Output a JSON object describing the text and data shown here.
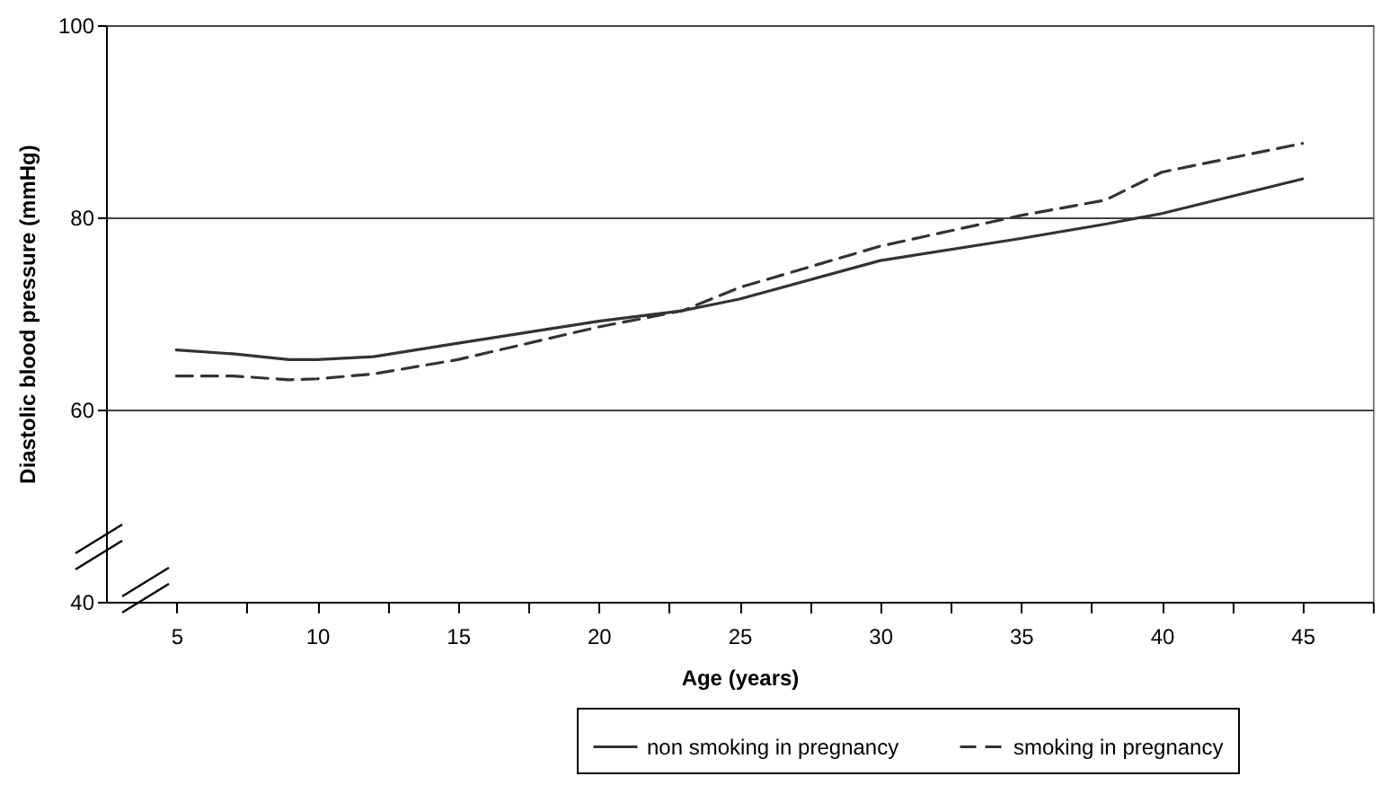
{
  "chart_data": {
    "type": "line",
    "xlabel": "Age (years)",
    "ylabel": "Diastolic blood pressure (mmHg)",
    "xlim": [
      2.5,
      47.5
    ],
    "xticks": [
      5,
      {
        "value": 7.5,
        "label": null
      },
      10,
      {
        "value": 12.5,
        "label": null
      },
      15,
      {
        "value": 17.5,
        "label": null
      },
      20,
      {
        "value": 22.5,
        "label": null
      },
      25,
      {
        "value": 27.5,
        "label": null
      },
      30,
      {
        "value": 32.5,
        "label": null
      },
      35,
      {
        "value": 37.5,
        "label": null
      },
      40,
      {
        "value": 42.5,
        "label": null
      },
      45,
      {
        "value": 47.5,
        "label": null
      }
    ],
    "ylim": [
      40,
      100
    ],
    "yticks": [
      40,
      60,
      80,
      100
    ],
    "grid": "y",
    "legend": "bottom right",
    "marker": "none",
    "x": [
      5,
      7,
      9,
      10,
      12,
      15,
      20,
      23,
      25,
      30,
      35,
      38,
      40,
      45
    ],
    "series": [
      {
        "name": "non smoking in pregnancy",
        "color": "#333333",
        "line_style": "solid",
        "values": [
          66.2,
          65.8,
          65.2,
          65.2,
          65.5,
          66.9,
          69.2,
          70.3,
          71.5,
          75.5,
          77.8,
          79.3,
          80.4,
          84
        ]
      },
      {
        "name": "smoking in pregnancy",
        "color": "#333333",
        "line_style": "dashed",
        "values": [
          63.5,
          63.5,
          63.1,
          63.2,
          63.7,
          65.2,
          68.6,
          70.3,
          72.7,
          77,
          80.2,
          81.8,
          84.7,
          87.7
        ]
      }
    ]
  }
}
